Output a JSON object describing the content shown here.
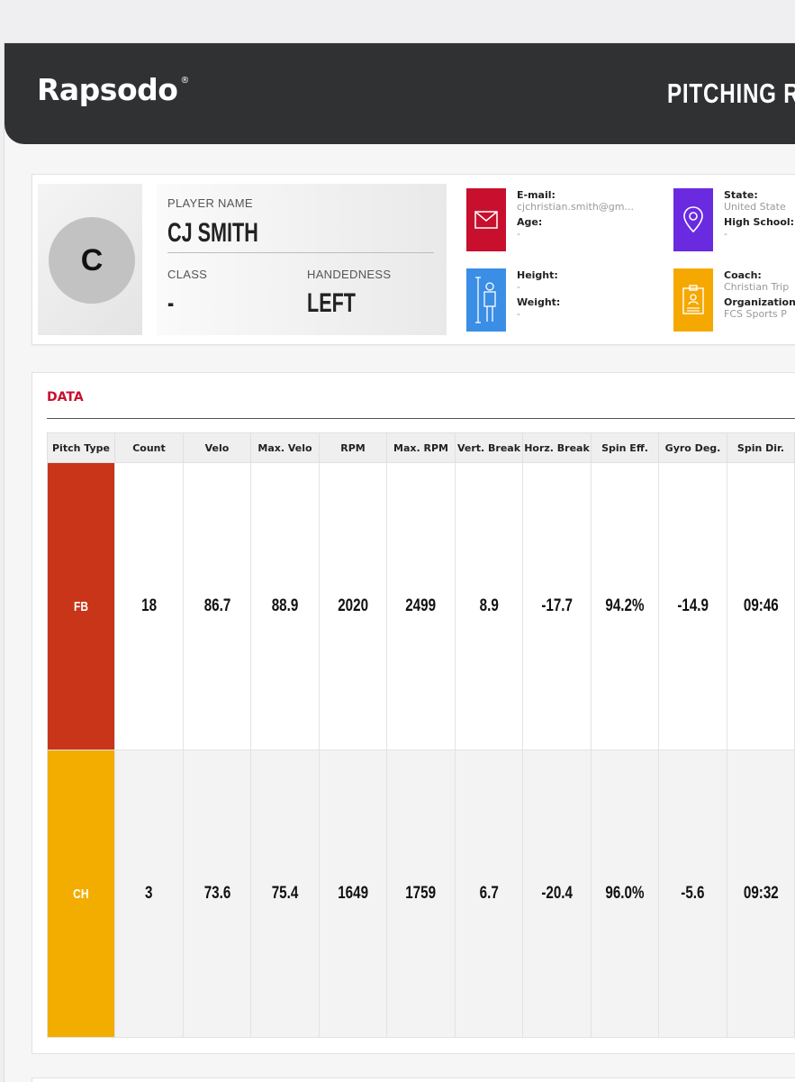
{
  "header": {
    "logo": "Rapsodo",
    "logo_mark": "®",
    "title": "PITCHING R"
  },
  "profile": {
    "avatar_initial": "C",
    "player_name_label": "PLAYER NAME",
    "player_name": "CJ SMITH",
    "class_label": "CLASS",
    "class_value": "-",
    "handedness_label": "HANDEDNESS",
    "handedness_value": "LEFT",
    "tiles": [
      {
        "icon": "mail-icon",
        "color": "#c8102e",
        "fields": [
          {
            "label": "E-mail:",
            "value": "cjchristian.smith@gm..."
          },
          {
            "label": "Age:",
            "value": "-"
          }
        ]
      },
      {
        "icon": "location-icon",
        "color": "#6a2be0",
        "fields": [
          {
            "label": "State:",
            "value": "United State"
          },
          {
            "label": "High School:",
            "value": "-"
          }
        ]
      },
      {
        "icon": "height-icon",
        "color": "#3a8ee6",
        "fields": [
          {
            "label": "Height:",
            "value": "-"
          },
          {
            "label": "Weight:",
            "value": "-"
          }
        ]
      },
      {
        "icon": "id-badge-icon",
        "color": "#f5a800",
        "fields": [
          {
            "label": "Coach:",
            "value": "Christian Trip"
          },
          {
            "label": "Organization",
            "value": "FCS Sports P"
          }
        ]
      }
    ]
  },
  "data_section": {
    "title": "DATA",
    "columns": [
      "Pitch Type",
      "Count",
      "Velo",
      "Max. Velo",
      "RPM",
      "Max. RPM",
      "Vert. Break",
      "Horz. Break",
      "Spin Eff.",
      "Gyro Deg.",
      "Spin Dir."
    ],
    "rows": [
      {
        "pitch": "FB",
        "color": "#c93518",
        "cells": [
          "18",
          "86.7",
          "88.9",
          "2020",
          "2499",
          "8.9",
          "-17.7",
          "94.2%",
          "-14.9",
          "09:46"
        ]
      },
      {
        "pitch": "CH",
        "color": "#f2ad00",
        "cells": [
          "3",
          "73.6",
          "75.4",
          "1649",
          "1759",
          "6.7",
          "-20.4",
          "96.0%",
          "-5.6",
          "09:32"
        ]
      }
    ]
  }
}
